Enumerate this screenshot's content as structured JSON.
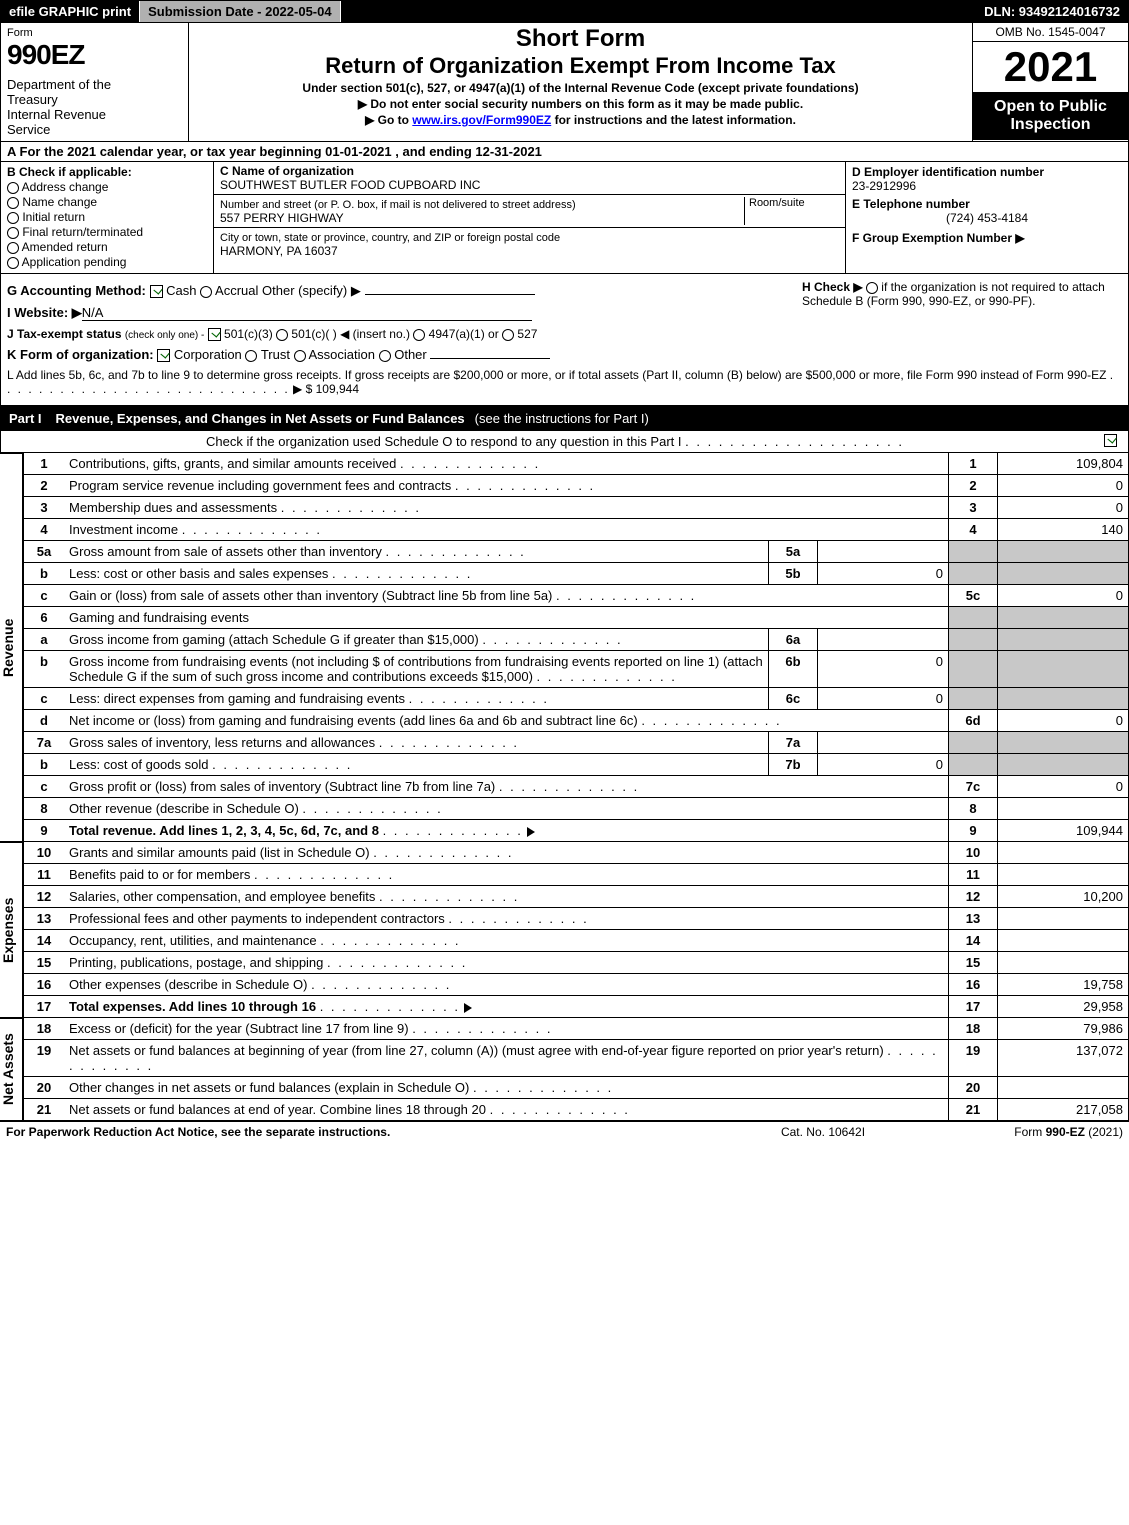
{
  "topbar": {
    "efile": "efile GRAPHIC print",
    "sub": "Submission Date - 2022-05-04",
    "dln": "DLN: 93492124016732"
  },
  "hdr": {
    "form": "Form",
    "num": "990EZ",
    "dept": "Department of the Treasury\nInternal Revenue Service",
    "sf": "Short Form",
    "rt": "Return of Organization Exempt From Income Tax",
    "under": "Under section 501(c), 527, or 4947(a)(1) of the Internal Revenue Code (except private foundations)",
    "note1": "▶ Do not enter social security numbers on this form as it may be made public.",
    "note2": "▶ Go to ",
    "link": "www.irs.gov/Form990EZ",
    "note2b": " for instructions and the latest information.",
    "omb": "OMB No. 1545-0047",
    "year": "2021",
    "open": "Open to Public Inspection"
  },
  "A": {
    "text": "A  For the 2021 calendar year, or tax year beginning 01-01-2021 , and ending 12-31-2021"
  },
  "B": {
    "label": "B  Check if applicable:",
    "opts": [
      "Address change",
      "Name change",
      "Initial return",
      "Final return/terminated",
      "Amended return",
      "Application pending"
    ]
  },
  "C": {
    "label": "C Name of organization",
    "name": "SOUTHWEST BUTLER FOOD CUPBOARD INC",
    "addrlbl": "Number and street (or P. O. box, if mail is not delivered to street address)",
    "room": "Room/suite",
    "addr": "557 PERRY HIGHWAY",
    "citylbl": "City or town, state or province, country, and ZIP or foreign postal code",
    "city": "HARMONY, PA  16037"
  },
  "D": {
    "label": "D Employer identification number",
    "val": "23-2912996",
    "el": "E Telephone number",
    "eval": "(724) 453-4184",
    "fl": "F Group Exemption Number ▶"
  },
  "G": {
    "label": "G Accounting Method:",
    "cash": "Cash",
    "accr": "Accrual",
    "oth": "Other (specify) ▶"
  },
  "H": {
    "label": "H  Check ▶",
    "opt": "if the organization is not required to attach Schedule B (Form 990, 990-EZ, or 990-PF)."
  },
  "I": {
    "label": "I Website: ▶",
    "val": "N/A"
  },
  "J": {
    "label": "J Tax-exempt status",
    "note": "(check only one) -",
    "o1": "501(c)(3)",
    "o2": "501(c)(  ) ◀ (insert no.)",
    "o3": "4947(a)(1) or",
    "o4": "527"
  },
  "K": {
    "label": "K Form of organization:",
    "o1": "Corporation",
    "o2": "Trust",
    "o3": "Association",
    "o4": "Other"
  },
  "L": {
    "text": "L Add lines 5b, 6c, and 7b to line 9 to determine gross receipts. If gross receipts are $200,000 or more, or if total assets (Part II, column (B) below) are $500,000 or more, file Form 990 instead of Form 990-EZ",
    "amt": "▶ $ 109,944",
    "dots": ". . . . . . . . . . . . . . . . . . . . . . . . . . . ."
  },
  "part1": {
    "pn": "Part I",
    "pt": "Revenue, Expenses, and Changes in Net Assets or Fund Balances",
    "pd": "(see the instructions for Part I)",
    "checkline": "Check if the organization used Schedule O to respond to any question in this Part I",
    "rows": [
      {
        "n": "1",
        "d": "Contributions, gifts, grants, and similar amounts received",
        "r": "1",
        "v": "109,804"
      },
      {
        "n": "2",
        "d": "Program service revenue including government fees and contracts",
        "r": "2",
        "v": "0"
      },
      {
        "n": "3",
        "d": "Membership dues and assessments",
        "r": "3",
        "v": "0"
      },
      {
        "n": "4",
        "d": "Investment income",
        "r": "4",
        "v": "140"
      },
      {
        "n": "5a",
        "d": "Gross amount from sale of assets other than inventory",
        "sn": "5a",
        "sv": "",
        "shade": true
      },
      {
        "n": "b",
        "d": "Less: cost or other basis and sales expenses",
        "sn": "5b",
        "sv": "0",
        "shade": true
      },
      {
        "n": "c",
        "d": "Gain or (loss) from sale of assets other than inventory (Subtract line 5b from line 5a)",
        "r": "5c",
        "v": "0"
      },
      {
        "n": "6",
        "d": "Gaming and fundraising events",
        "shade": true,
        "noright": true
      },
      {
        "n": "a",
        "d": "Gross income from gaming (attach Schedule G if greater than $15,000)",
        "sn": "6a",
        "sv": "",
        "shade": true
      },
      {
        "n": "b",
        "d": "Gross income from fundraising events (not including $                    of contributions from fundraising events reported on line 1) (attach Schedule G if the sum of such gross income and contributions exceeds $15,000)",
        "sn": "6b",
        "sv": "0",
        "shade": true
      },
      {
        "n": "c",
        "d": "Less: direct expenses from gaming and fundraising events",
        "sn": "6c",
        "sv": "0",
        "shade": true
      },
      {
        "n": "d",
        "d": "Net income or (loss) from gaming and fundraising events (add lines 6a and 6b and subtract line 6c)",
        "r": "6d",
        "v": "0"
      },
      {
        "n": "7a",
        "d": "Gross sales of inventory, less returns and allowances",
        "sn": "7a",
        "sv": "",
        "shade": true
      },
      {
        "n": "b",
        "d": "Less: cost of goods sold",
        "sn": "7b",
        "sv": "0",
        "shade": true
      },
      {
        "n": "c",
        "d": "Gross profit or (loss) from sales of inventory (Subtract line 7b from line 7a)",
        "r": "7c",
        "v": "0"
      },
      {
        "n": "8",
        "d": "Other revenue (describe in Schedule O)",
        "r": "8",
        "v": ""
      },
      {
        "n": "9",
        "d": "Total revenue. Add lines 1, 2, 3, 4, 5c, 6d, 7c, and 8",
        "bold": true,
        "arrow": true,
        "r": "9",
        "v": "109,944"
      }
    ],
    "exp": [
      {
        "n": "10",
        "d": "Grants and similar amounts paid (list in Schedule O)",
        "r": "10",
        "v": ""
      },
      {
        "n": "11",
        "d": "Benefits paid to or for members",
        "r": "11",
        "v": ""
      },
      {
        "n": "12",
        "d": "Salaries, other compensation, and employee benefits",
        "r": "12",
        "v": "10,200"
      },
      {
        "n": "13",
        "d": "Professional fees and other payments to independent contractors",
        "r": "13",
        "v": ""
      },
      {
        "n": "14",
        "d": "Occupancy, rent, utilities, and maintenance",
        "r": "14",
        "v": ""
      },
      {
        "n": "15",
        "d": "Printing, publications, postage, and shipping",
        "r": "15",
        "v": ""
      },
      {
        "n": "16",
        "d": "Other expenses (describe in Schedule O)",
        "r": "16",
        "v": "19,758"
      },
      {
        "n": "17",
        "d": "Total expenses. Add lines 10 through 16",
        "bold": true,
        "arrow": true,
        "r": "17",
        "v": "29,958"
      }
    ],
    "net": [
      {
        "n": "18",
        "d": "Excess or (deficit) for the year (Subtract line 17 from line 9)",
        "r": "18",
        "v": "79,986"
      },
      {
        "n": "19",
        "d": "Net assets or fund balances at beginning of year (from line 27, column (A)) (must agree with end-of-year figure reported on prior year's return)",
        "r": "19",
        "v": "137,072"
      },
      {
        "n": "20",
        "d": "Other changes in net assets or fund balances (explain in Schedule O)",
        "r": "20",
        "v": ""
      },
      {
        "n": "21",
        "d": "Net assets or fund balances at end of year. Combine lines 18 through 20",
        "r": "21",
        "v": "217,058"
      }
    ],
    "sidelabels": {
      "rev": "Revenue",
      "exp": "Expenses",
      "net": "Net Assets"
    }
  },
  "footer": {
    "l": "For Paperwork Reduction Act Notice, see the separate instructions.",
    "c": "Cat. No. 10642I",
    "r": "Form 990-EZ (2021)"
  }
}
